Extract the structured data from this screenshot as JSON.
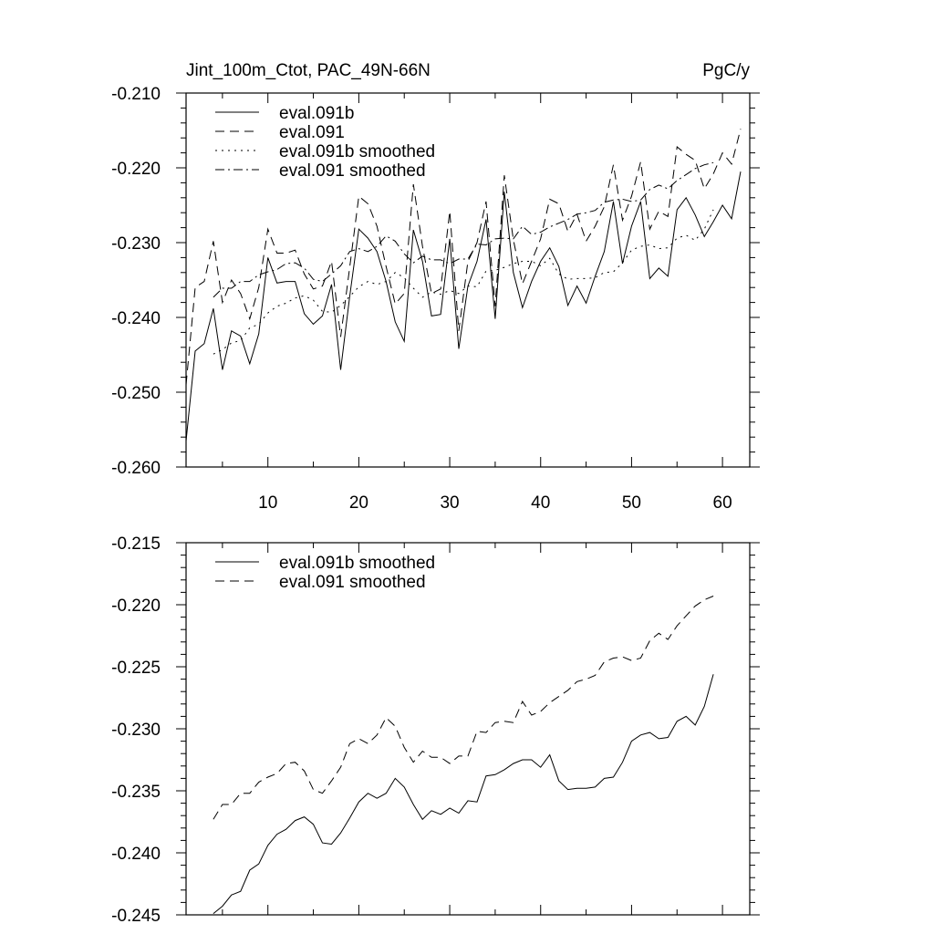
{
  "chart_data": [
    {
      "type": "line",
      "title": "Jint_100m_Ctot, PAC_49N-66N",
      "units": "PgC/y",
      "xlabel": "",
      "ylabel": "",
      "xlim": [
        1,
        63
      ],
      "ylim": [
        -0.26,
        -0.21
      ],
      "xticks": [
        10,
        20,
        30,
        40,
        50,
        60
      ],
      "yticks": [
        -0.26,
        -0.25,
        -0.24,
        -0.23,
        -0.22,
        -0.21
      ],
      "ytick_labels": [
        "-0.260",
        "-0.250",
        "-0.240",
        "-0.230",
        "-0.220",
        "-0.210"
      ],
      "legend_position": "top-left",
      "grid": false,
      "series": [
        {
          "name": "eval.091b",
          "style": "solid",
          "x": [
            1,
            2,
            3,
            4,
            5,
            6,
            7,
            8,
            9,
            10,
            11,
            12,
            13,
            14,
            15,
            16,
            17,
            18,
            19,
            20,
            21,
            22,
            23,
            24,
            25,
            26,
            27,
            28,
            29,
            30,
            31,
            32,
            33,
            34,
            35,
            36,
            37,
            38,
            39,
            40,
            41,
            42,
            43,
            44,
            45,
            46,
            47,
            48,
            49,
            50,
            51,
            52,
            53,
            54,
            55,
            56,
            57,
            58,
            59,
            60,
            61,
            62
          ],
          "values": [
            -0.2565,
            -0.2445,
            -0.2435,
            -0.2388,
            -0.247,
            -0.2418,
            -0.2425,
            -0.2462,
            -0.2422,
            -0.232,
            -0.2354,
            -0.2352,
            -0.2352,
            -0.2395,
            -0.2409,
            -0.2398,
            -0.2356,
            -0.247,
            -0.2372,
            -0.2282,
            -0.2294,
            -0.2312,
            -0.2352,
            -0.2406,
            -0.2432,
            -0.2283,
            -0.2325,
            -0.2398,
            -0.2396,
            -0.2295,
            -0.2442,
            -0.2358,
            -0.2325,
            -0.2269,
            -0.2402,
            -0.2232,
            -0.234,
            -0.2387,
            -0.2352,
            -0.2325,
            -0.2307,
            -0.2332,
            -0.2384,
            -0.2358,
            -0.2381,
            -0.2345,
            -0.2312,
            -0.2245,
            -0.2328,
            -0.2278,
            -0.2245,
            -0.2348,
            -0.2334,
            -0.2345,
            -0.2256,
            -0.224,
            -0.2263,
            -0.2292,
            -0.2272,
            -0.225,
            -0.2268,
            -0.2205
          ]
        },
        {
          "name": "eval.091",
          "style": "dashed",
          "x": [
            1,
            2,
            3,
            4,
            5,
            6,
            7,
            8,
            9,
            10,
            11,
            12,
            13,
            14,
            15,
            16,
            17,
            18,
            19,
            20,
            21,
            22,
            23,
            24,
            25,
            26,
            27,
            28,
            29,
            30,
            31,
            32,
            33,
            34,
            35,
            36,
            37,
            38,
            39,
            40,
            41,
            42,
            43,
            44,
            45,
            46,
            47,
            48,
            49,
            50,
            51,
            52,
            53,
            54,
            55,
            56,
            57,
            58,
            59,
            60,
            61,
            62
          ],
          "values": [
            -0.249,
            -0.236,
            -0.2352,
            -0.2298,
            -0.238,
            -0.235,
            -0.2368,
            -0.2402,
            -0.236,
            -0.2282,
            -0.2314,
            -0.2314,
            -0.231,
            -0.2342,
            -0.2362,
            -0.2358,
            -0.2325,
            -0.2426,
            -0.2333,
            -0.2238,
            -0.2248,
            -0.2278,
            -0.2332,
            -0.2382,
            -0.2368,
            -0.2222,
            -0.2305,
            -0.2368,
            -0.2362,
            -0.2258,
            -0.2418,
            -0.2325,
            -0.23,
            -0.2245,
            -0.2385,
            -0.221,
            -0.2296,
            -0.2355,
            -0.2325,
            -0.2295,
            -0.2242,
            -0.2248,
            -0.2285,
            -0.2262,
            -0.2298,
            -0.2278,
            -0.2252,
            -0.2196,
            -0.227,
            -0.2238,
            -0.2192,
            -0.2282,
            -0.2258,
            -0.2265,
            -0.2172,
            -0.2182,
            -0.219,
            -0.2228,
            -0.2208,
            -0.218,
            -0.2195,
            -0.2148
          ]
        },
        {
          "name": "eval.091b smoothed",
          "style": "dotted",
          "x": [
            4,
            5,
            6,
            7,
            8,
            9,
            10,
            11,
            12,
            13,
            14,
            15,
            16,
            17,
            18,
            19,
            20,
            21,
            22,
            23,
            24,
            25,
            26,
            27,
            28,
            29,
            30,
            31,
            32,
            33,
            34,
            35,
            36,
            37,
            38,
            39,
            40,
            41,
            42,
            43,
            44,
            45,
            46,
            47,
            48,
            49,
            50,
            51,
            52,
            53,
            54,
            55,
            56,
            57,
            58,
            59
          ],
          "values": [
            -0.2449,
            -0.2443,
            -0.2434,
            -0.2431,
            -0.2414,
            -0.2409,
            -0.2394,
            -0.2385,
            -0.2381,
            -0.2374,
            -0.2371,
            -0.2377,
            -0.2392,
            -0.2393,
            -0.2384,
            -0.2372,
            -0.2359,
            -0.2352,
            -0.2356,
            -0.2352,
            -0.234,
            -0.2347,
            -0.2361,
            -0.2373,
            -0.2366,
            -0.2369,
            -0.2364,
            -0.2368,
            -0.2358,
            -0.2359,
            -0.2338,
            -0.2337,
            -0.2333,
            -0.2328,
            -0.2325,
            -0.2325,
            -0.2331,
            -0.2321,
            -0.2342,
            -0.2349,
            -0.2348,
            -0.2348,
            -0.2347,
            -0.234,
            -0.2339,
            -0.2327,
            -0.231,
            -0.2305,
            -0.2303,
            -0.2308,
            -0.2307,
            -0.2294,
            -0.229,
            -0.2297,
            -0.2282,
            -0.2256
          ]
        },
        {
          "name": "eval.091 smoothed",
          "style": "dashdot",
          "x": [
            4,
            5,
            6,
            7,
            8,
            9,
            10,
            11,
            12,
            13,
            14,
            15,
            16,
            17,
            18,
            19,
            20,
            21,
            22,
            23,
            24,
            25,
            26,
            27,
            28,
            29,
            30,
            31,
            32,
            33,
            34,
            35,
            36,
            37,
            38,
            39,
            40,
            41,
            42,
            43,
            44,
            45,
            46,
            47,
            48,
            49,
            50,
            51,
            52,
            53,
            54,
            55,
            56,
            57,
            58,
            59
          ],
          "values": [
            -0.2373,
            -0.2361,
            -0.2361,
            -0.2352,
            -0.2352,
            -0.2343,
            -0.2339,
            -0.2336,
            -0.2328,
            -0.2327,
            -0.2334,
            -0.2349,
            -0.2352,
            -0.2342,
            -0.2331,
            -0.2312,
            -0.2308,
            -0.2312,
            -0.2305,
            -0.2291,
            -0.2298,
            -0.2315,
            -0.2327,
            -0.2318,
            -0.2323,
            -0.2323,
            -0.2328,
            -0.2322,
            -0.2322,
            -0.2302,
            -0.2303,
            -0.2295,
            -0.2294,
            -0.2295,
            -0.2278,
            -0.2289,
            -0.2286,
            -0.2279,
            -0.2274,
            -0.2269,
            -0.2262,
            -0.226,
            -0.2257,
            -0.2246,
            -0.2243,
            -0.2242,
            -0.2245,
            -0.2243,
            -0.2229,
            -0.2223,
            -0.2228,
            -0.2217,
            -0.2209,
            -0.2201,
            -0.2196,
            -0.2193
          ]
        }
      ]
    },
    {
      "type": "line",
      "title": "",
      "xlabel": "",
      "ylabel": "",
      "xlim": [
        1,
        63
      ],
      "ylim": [
        -0.245,
        -0.215
      ],
      "xticks": [
        10,
        20,
        30,
        40,
        50,
        60
      ],
      "yticks": [
        -0.245,
        -0.24,
        -0.235,
        -0.23,
        -0.225,
        -0.22,
        -0.215
      ],
      "ytick_labels": [
        "-0.245",
        "-0.240",
        "-0.235",
        "-0.230",
        "-0.225",
        "-0.220",
        "-0.215"
      ],
      "legend_position": "top-left",
      "grid": false,
      "series": [
        {
          "name": "eval.091b smoothed",
          "style": "solid",
          "x": [
            4,
            5,
            6,
            7,
            8,
            9,
            10,
            11,
            12,
            13,
            14,
            15,
            16,
            17,
            18,
            19,
            20,
            21,
            22,
            23,
            24,
            25,
            26,
            27,
            28,
            29,
            30,
            31,
            32,
            33,
            34,
            35,
            36,
            37,
            38,
            39,
            40,
            41,
            42,
            43,
            44,
            45,
            46,
            47,
            48,
            49,
            50,
            51,
            52,
            53,
            54,
            55,
            56,
            57,
            58,
            59
          ],
          "values": [
            -0.2449,
            -0.2443,
            -0.2434,
            -0.2431,
            -0.2414,
            -0.2409,
            -0.2394,
            -0.2385,
            -0.2381,
            -0.2374,
            -0.2371,
            -0.2377,
            -0.2392,
            -0.2393,
            -0.2384,
            -0.2372,
            -0.2359,
            -0.2352,
            -0.2356,
            -0.2352,
            -0.234,
            -0.2347,
            -0.2361,
            -0.2373,
            -0.2366,
            -0.2369,
            -0.2364,
            -0.2368,
            -0.2358,
            -0.2359,
            -0.2338,
            -0.2337,
            -0.2333,
            -0.2328,
            -0.2325,
            -0.2325,
            -0.2331,
            -0.2321,
            -0.2342,
            -0.2349,
            -0.2348,
            -0.2348,
            -0.2347,
            -0.234,
            -0.2339,
            -0.2327,
            -0.231,
            -0.2305,
            -0.2303,
            -0.2308,
            -0.2307,
            -0.2294,
            -0.229,
            -0.2297,
            -0.2282,
            -0.2256
          ]
        },
        {
          "name": "eval.091 smoothed",
          "style": "dashed",
          "x": [
            4,
            5,
            6,
            7,
            8,
            9,
            10,
            11,
            12,
            13,
            14,
            15,
            16,
            17,
            18,
            19,
            20,
            21,
            22,
            23,
            24,
            25,
            26,
            27,
            28,
            29,
            30,
            31,
            32,
            33,
            34,
            35,
            36,
            37,
            38,
            39,
            40,
            41,
            42,
            43,
            44,
            45,
            46,
            47,
            48,
            49,
            50,
            51,
            52,
            53,
            54,
            55,
            56,
            57,
            58,
            59
          ],
          "values": [
            -0.2373,
            -0.2361,
            -0.2361,
            -0.2352,
            -0.2352,
            -0.2343,
            -0.2339,
            -0.2336,
            -0.2328,
            -0.2327,
            -0.2334,
            -0.2349,
            -0.2352,
            -0.2342,
            -0.2331,
            -0.2312,
            -0.2308,
            -0.2312,
            -0.2305,
            -0.2291,
            -0.2298,
            -0.2315,
            -0.2327,
            -0.2318,
            -0.2323,
            -0.2323,
            -0.2328,
            -0.2322,
            -0.2322,
            -0.2302,
            -0.2303,
            -0.2295,
            -0.2294,
            -0.2295,
            -0.2278,
            -0.2289,
            -0.2286,
            -0.2279,
            -0.2274,
            -0.2269,
            -0.2262,
            -0.226,
            -0.2257,
            -0.2246,
            -0.2243,
            -0.2242,
            -0.2245,
            -0.2243,
            -0.2229,
            -0.2223,
            -0.2228,
            -0.2217,
            -0.2209,
            -0.2201,
            -0.2196,
            -0.2193
          ]
        }
      ]
    }
  ]
}
